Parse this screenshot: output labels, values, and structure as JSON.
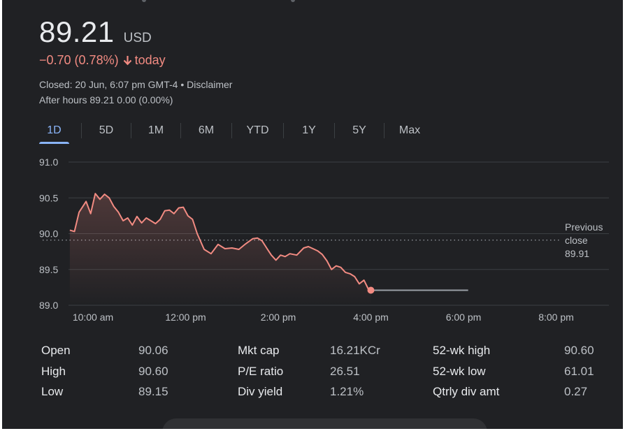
{
  "quote": {
    "price": "89.21",
    "currency": "USD",
    "change": "−0.70 (0.78%)",
    "change_suffix": "today",
    "closed_text": "Closed: 20 Jun, 6:07 pm GMT-4",
    "separator": " • ",
    "disclaimer": "Disclaimer",
    "after_hours": "After hours 89.21 0.00 (0.00%)"
  },
  "tabs": [
    {
      "label": "1D",
      "active": true
    },
    {
      "label": "5D"
    },
    {
      "label": "1M"
    },
    {
      "label": "6M"
    },
    {
      "label": "YTD"
    },
    {
      "label": "1Y"
    },
    {
      "label": "5Y"
    },
    {
      "label": "Max"
    }
  ],
  "colors": {
    "negative": "#f28b82",
    "accent": "#8ab4f8",
    "grid": "#3c4043",
    "axis_text": "#bdc1c6",
    "after_hours_line": "#9aa0a6"
  },
  "chart_data": {
    "type": "line",
    "y_ticks": [
      "91.0",
      "90.5",
      "90.0",
      "89.5",
      "89.0"
    ],
    "ylim": [
      89.0,
      91.0
    ],
    "x_ticks": [
      "10:00 am",
      "12:00 pm",
      "2:00 pm",
      "4:00 pm",
      "6:00 pm",
      "8:00 pm"
    ],
    "previous_close": {
      "label_line1": "Previous",
      "label_line2": "close",
      "value": "89.91",
      "y": 89.91
    },
    "series": [
      {
        "x_hours": [
          9.5,
          9.6,
          9.7,
          9.85,
          9.95,
          10.05,
          10.15,
          10.25,
          10.35,
          10.45,
          10.55,
          10.65,
          10.75,
          10.85,
          10.95,
          11.05,
          11.15,
          11.25,
          11.35,
          11.45,
          11.55,
          11.65,
          11.75,
          11.85,
          11.95,
          12.05,
          12.15,
          12.25,
          12.4,
          12.55,
          12.7,
          12.85,
          13.0,
          13.15,
          13.3,
          13.45,
          13.55,
          13.65,
          13.75,
          13.85,
          13.95,
          14.05,
          14.15,
          14.25,
          14.4,
          14.55,
          14.65,
          14.75,
          14.85,
          14.95,
          15.05,
          15.15,
          15.25,
          15.35,
          15.45,
          15.55,
          15.65,
          15.75,
          15.85,
          15.95,
          16.0
        ],
        "y": [
          90.05,
          90.03,
          90.3,
          90.45,
          90.28,
          90.56,
          90.48,
          90.55,
          90.5,
          90.38,
          90.3,
          90.18,
          90.22,
          90.12,
          90.24,
          90.15,
          90.22,
          90.18,
          90.14,
          90.2,
          90.32,
          90.33,
          90.28,
          90.36,
          90.37,
          90.25,
          90.2,
          90.0,
          89.78,
          89.72,
          89.85,
          89.79,
          89.8,
          89.78,
          89.86,
          89.93,
          89.94,
          89.9,
          89.8,
          89.7,
          89.63,
          89.7,
          89.68,
          89.72,
          89.7,
          89.8,
          89.82,
          89.79,
          89.76,
          89.71,
          89.62,
          89.5,
          89.55,
          89.53,
          89.46,
          89.44,
          89.4,
          89.3,
          89.35,
          89.22,
          89.21
        ]
      },
      {
        "name": "After hours",
        "x_hours": [
          16.0,
          18.1
        ],
        "y": [
          89.21,
          89.21
        ]
      }
    ],
    "last_point": {
      "x_hours": 16.0,
      "y": 89.21
    }
  },
  "stats": {
    "col1": [
      {
        "label": "Open",
        "value": "90.06"
      },
      {
        "label": "High",
        "value": "90.60"
      },
      {
        "label": "Low",
        "value": "89.15"
      }
    ],
    "col2": [
      {
        "label": "Mkt cap",
        "value": "16.21KCr"
      },
      {
        "label": "P/E ratio",
        "value": "26.51"
      },
      {
        "label": "Div yield",
        "value": "1.21%"
      }
    ],
    "col3": [
      {
        "label": "52-wk high",
        "value": "90.60"
      },
      {
        "label": "52-wk low",
        "value": "61.01"
      },
      {
        "label": "Qtrly div amt",
        "value": "0.27"
      }
    ]
  }
}
